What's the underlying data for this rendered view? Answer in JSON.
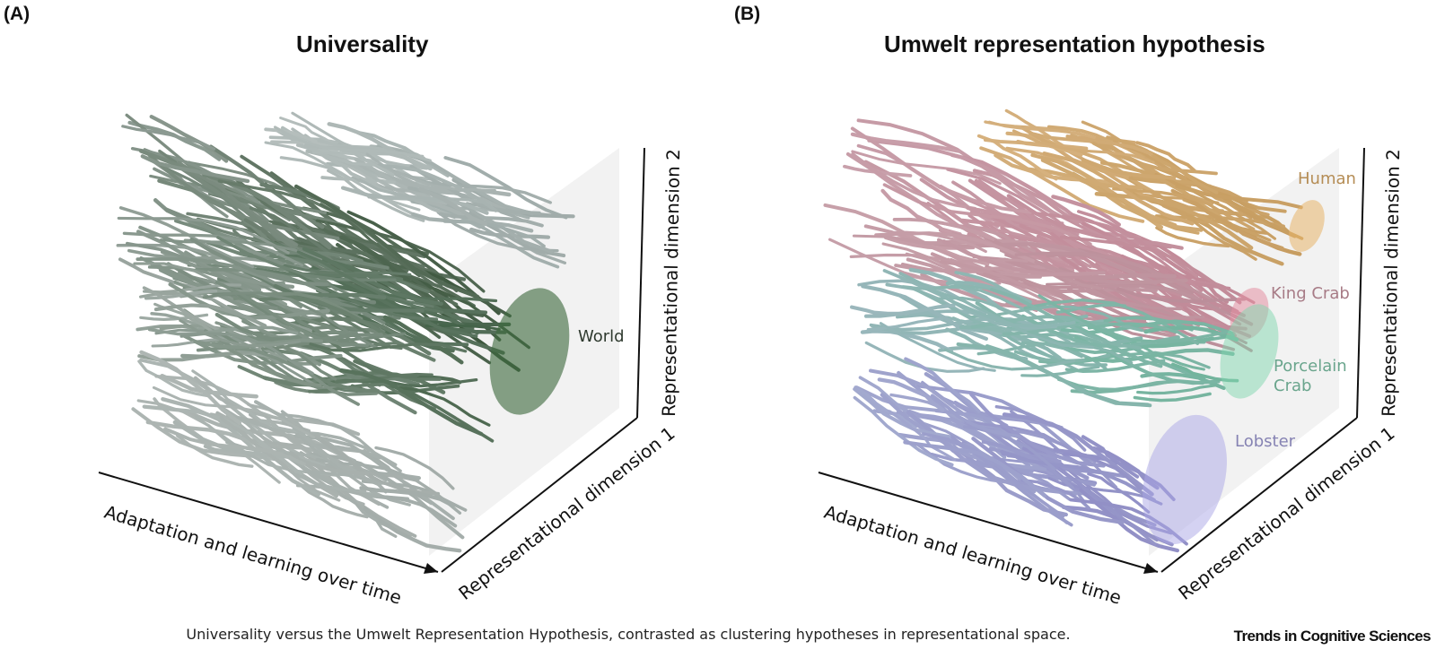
{
  "panels": [
    {
      "letter": "(A)",
      "title": "Universality",
      "axes": {
        "x": "Adaptation and learning over time",
        "y": "Representational dimension 1",
        "z": "Representational dimension 2"
      },
      "clusters": [
        {
          "label": "World",
          "color": "#3f6b3f"
        }
      ]
    },
    {
      "letter": "(B)",
      "title": "Umwelt representation hypothesis",
      "axes": {
        "x": "Adaptation and learning over time",
        "y": "Representational dimension 1",
        "z": "Representational dimension 2"
      },
      "clusters": [
        {
          "label": "Human",
          "color": "#d6a968"
        },
        {
          "label": "King Crab",
          "color": "#d98b9a"
        },
        {
          "label": "Porcelain Crab",
          "color": "#79c9a4"
        },
        {
          "label": "Lobster",
          "color": "#9f9adb"
        }
      ]
    }
  ],
  "caption": "Universality versus the Umwelt Representation Hypothesis, contrasted as clustering hypotheses in representational space.",
  "brand": "Trends in Cognitive Sciences"
}
